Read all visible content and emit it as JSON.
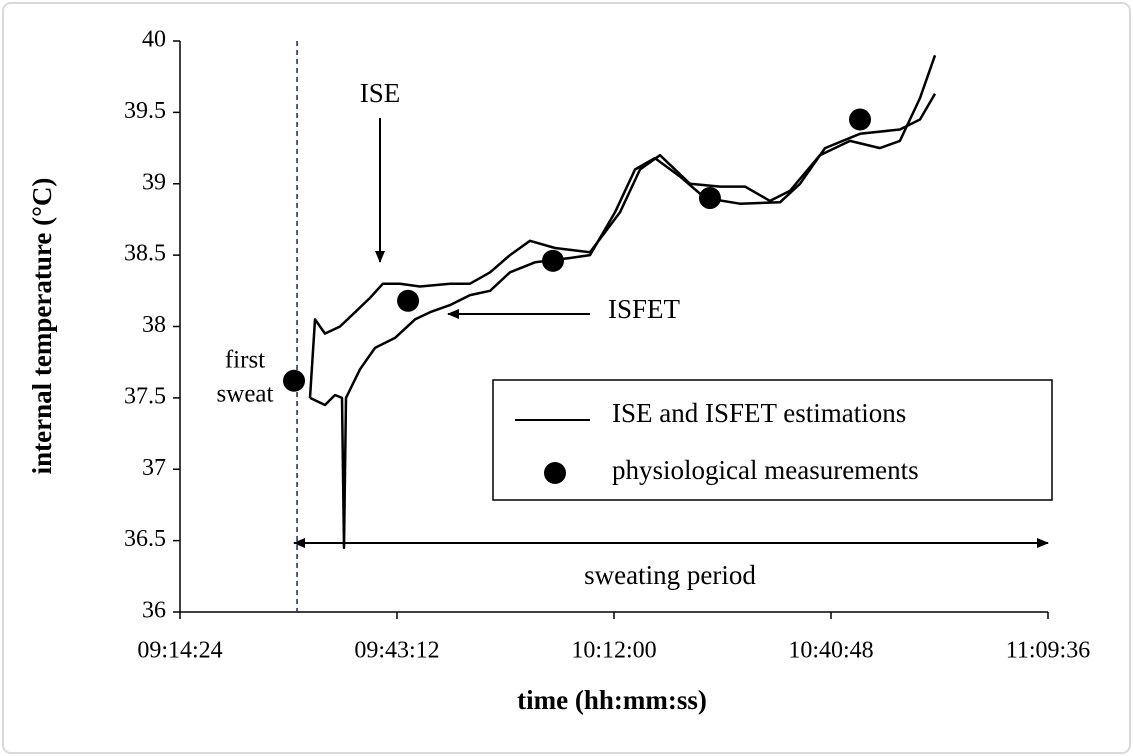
{
  "chart_data": {
    "type": "line",
    "xlabel": "time (hh:mm:ss)",
    "ylabel": "internal temperature (°C)",
    "xlim": [
      33264,
      40176
    ],
    "xticks": [
      {
        "value": 33264,
        "label": "09:14:24"
      },
      {
        "value": 34992,
        "label": "09:43:12"
      },
      {
        "value": 36720,
        "label": "10:12:00"
      },
      {
        "value": 38448,
        "label": "10:40:48"
      },
      {
        "value": 40176,
        "label": "11:09:36"
      }
    ],
    "ylim": [
      36,
      40
    ],
    "yticks": [
      36,
      36.5,
      37,
      37.5,
      38,
      38.5,
      39,
      39.5,
      40
    ],
    "line_legend": "ISE and ISFET estimations",
    "series": [
      {
        "name": "ISE",
        "color": "#000000",
        "x": [
          34299,
          34339,
          34419,
          34538,
          34658,
          34777,
          34880,
          35016,
          35175,
          35414,
          35573,
          35733,
          35892,
          36051,
          36250,
          36529,
          36768,
          36927,
          37086,
          37325,
          37564,
          37763,
          37962,
          38121,
          38360,
          38599,
          38838,
          38997,
          39157,
          39276
        ],
        "values": [
          37.5,
          38.05,
          37.95,
          38.0,
          38.1,
          38.2,
          38.3,
          38.3,
          38.28,
          38.3,
          38.3,
          38.38,
          38.5,
          38.6,
          38.55,
          38.52,
          38.8,
          39.1,
          39.2,
          39.0,
          38.98,
          38.98,
          38.88,
          38.95,
          39.2,
          39.3,
          39.25,
          39.3,
          39.6,
          39.9
        ]
      },
      {
        "name": "ISFET",
        "color": "#000000",
        "x": [
          34299,
          34419,
          34498,
          34554,
          34570,
          34586,
          34697,
          34817,
          34976,
          35135,
          35255,
          35414,
          35573,
          35733,
          35892,
          36091,
          36370,
          36529,
          36728,
          36887,
          37046,
          37246,
          37445,
          37723,
          38042,
          38201,
          38400,
          38679,
          38997,
          39157,
          39276
        ],
        "values": [
          37.5,
          37.45,
          37.52,
          37.5,
          36.45,
          37.5,
          37.7,
          37.85,
          37.92,
          38.05,
          38.1,
          38.15,
          38.22,
          38.25,
          38.38,
          38.45,
          38.48,
          38.5,
          38.8,
          39.1,
          39.18,
          39.05,
          38.9,
          38.86,
          38.87,
          39.0,
          39.25,
          39.35,
          39.38,
          39.45,
          39.63
        ]
      }
    ],
    "scatter": {
      "name": "physiological measurements",
      "color": "#000000",
      "x": [
        34172,
        35080,
        36234,
        37484,
        38679
      ],
      "values": [
        37.62,
        38.18,
        38.46,
        38.9,
        39.45
      ]
    },
    "marker_x": 34196,
    "annotations": {
      "first_sweat": [
        "first",
        "sweat"
      ],
      "period": "sweating period"
    }
  }
}
